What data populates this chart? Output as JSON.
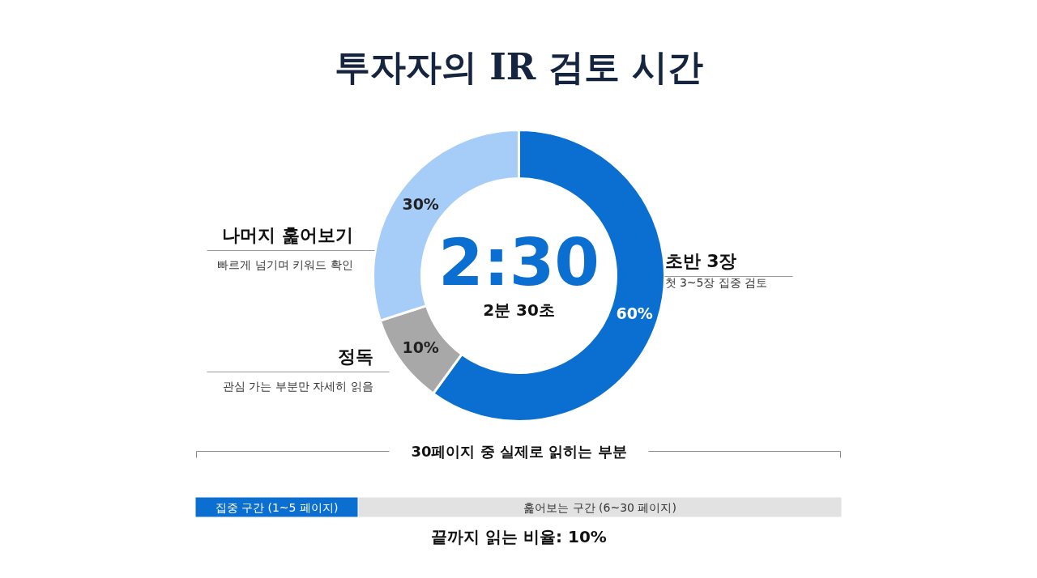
{
  "chart_data": {
    "type": "donut",
    "title": "투자자의 IR 검토 시간",
    "categories": [
      "초반 3장",
      "정독",
      "나머지 훑어보기"
    ],
    "values": [
      60,
      10,
      30
    ],
    "colors": [
      "#0b6fd1",
      "#a8a8a8",
      "#a5cdf8"
    ],
    "value_labels": [
      "60%",
      "10%",
      "30%"
    ],
    "annotations": [
      "2:30",
      "2분 30초",
      "첫 3~5장 집중 검토",
      "관심 가는 부분만 자세히 읽음",
      "빠르게 넘기며 키워드 확인",
      "30페이지 중 실제로 읽히는 부분",
      "집중 구간 (1~5 페이지)",
      "훑어보는 구간 (6~30 페이지)",
      "끝까지 읽는 비율: 10%"
    ]
  }
}
